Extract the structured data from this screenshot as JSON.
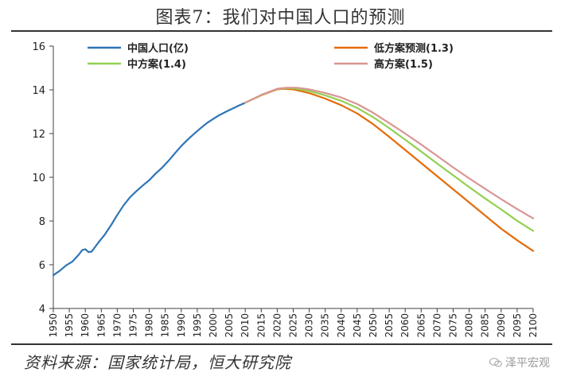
{
  "title": "图表7：我们对中国人口的预测",
  "source": "资料来源：国家统计局，恒大研究院",
  "watermark": "泽平宏观",
  "chart_data": {
    "type": "line",
    "ylim": [
      4,
      16
    ],
    "yticks": [
      4,
      6,
      8,
      10,
      12,
      14,
      16
    ],
    "xlim": [
      1950,
      2100
    ],
    "xticks": [
      1950,
      1955,
      1960,
      1965,
      1970,
      1975,
      1980,
      1985,
      1990,
      1995,
      2000,
      2005,
      2010,
      2015,
      2020,
      2025,
      2030,
      2035,
      2040,
      2045,
      2050,
      2055,
      2060,
      2065,
      2070,
      2075,
      2080,
      2085,
      2090,
      2095,
      2100
    ],
    "grid": false,
    "legend_position": "top",
    "series": [
      {
        "name": "中国人口(亿)",
        "color": "#2E75B6",
        "x": [
          1950,
          1952,
          1954,
          1956,
          1958,
          1959,
          1960,
          1961,
          1962,
          1964,
          1966,
          1968,
          1970,
          1972,
          1974,
          1976,
          1978,
          1980,
          1982,
          1984,
          1986,
          1988,
          1990,
          1992,
          1994,
          1996,
          1998,
          2000,
          2002,
          2004,
          2006,
          2008,
          2010
        ],
        "y": [
          5.52,
          5.72,
          5.97,
          6.15,
          6.47,
          6.67,
          6.71,
          6.58,
          6.6,
          7.0,
          7.36,
          7.8,
          8.28,
          8.72,
          9.09,
          9.37,
          9.63,
          9.87,
          10.17,
          10.44,
          10.75,
          11.1,
          11.43,
          11.72,
          11.99,
          12.24,
          12.48,
          12.67,
          12.85,
          13.0,
          13.14,
          13.28,
          13.41
        ]
      },
      {
        "name": "低方案预测(1.3)",
        "color": "#E46C0A",
        "x": [
          2010,
          2015,
          2020,
          2022,
          2025,
          2030,
          2035,
          2040,
          2045,
          2050,
          2055,
          2060,
          2065,
          2070,
          2075,
          2080,
          2085,
          2090,
          2095,
          2100
        ],
        "y": [
          13.41,
          13.75,
          14.02,
          14.05,
          14.02,
          13.85,
          13.6,
          13.3,
          12.92,
          12.43,
          11.85,
          11.25,
          10.65,
          10.05,
          9.45,
          8.85,
          8.25,
          7.65,
          7.12,
          6.63
        ]
      },
      {
        "name": "中方案(1.4)",
        "color": "#92D050",
        "x": [
          2010,
          2015,
          2020,
          2023,
          2025,
          2030,
          2035,
          2040,
          2045,
          2050,
          2055,
          2060,
          2065,
          2070,
          2075,
          2080,
          2085,
          2090,
          2095,
          2100
        ],
        "y": [
          13.41,
          13.76,
          14.04,
          14.08,
          14.07,
          13.95,
          13.75,
          13.5,
          13.17,
          12.75,
          12.25,
          11.72,
          11.18,
          10.63,
          10.09,
          9.55,
          9.03,
          8.53,
          8.01,
          7.55
        ]
      },
      {
        "name": "高方案(1.5)",
        "color": "#D99594",
        "x": [
          2010,
          2015,
          2020,
          2023,
          2026,
          2030,
          2035,
          2040,
          2045,
          2050,
          2055,
          2060,
          2065,
          2070,
          2075,
          2080,
          2085,
          2090,
          2095,
          2100
        ],
        "y": [
          13.41,
          13.77,
          14.05,
          14.1,
          14.1,
          14.02,
          13.86,
          13.65,
          13.35,
          12.95,
          12.48,
          12.0,
          11.5,
          10.98,
          10.45,
          9.95,
          9.47,
          9.0,
          8.55,
          8.12
        ]
      }
    ]
  }
}
